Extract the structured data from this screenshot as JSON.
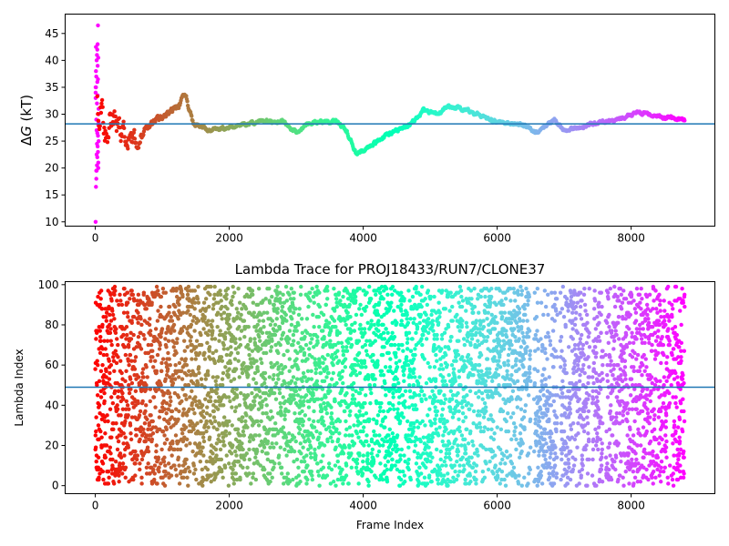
{
  "chart_data": [
    {
      "type": "scatter",
      "title": "",
      "xlabel": "",
      "ylabel": "ΔG (kT)",
      "ylabel_parts": {
        "delta": "Δ",
        "var": "G",
        "unit": " (kT)"
      },
      "xlim": [
        -450,
        9250
      ],
      "ylim": [
        9.2,
        48.6
      ],
      "xticks": [
        0,
        2000,
        4000,
        6000,
        8000
      ],
      "xtick_labels": [
        "0",
        "2000",
        "4000",
        "6000",
        "8000"
      ],
      "yticks": [
        10,
        15,
        20,
        25,
        30,
        35,
        40,
        45
      ],
      "ytick_labels": [
        "10",
        "15",
        "20",
        "25",
        "30",
        "35",
        "40",
        "45"
      ],
      "hline": 28.2,
      "hline_color": "#1f77b4",
      "colormap": "rainbow (red at frame 0 to violet at final frame)",
      "x_max": 8800,
      "anchors": [
        {
          "x": 10,
          "y": 40
        },
        {
          "x": 40,
          "y": 30
        },
        {
          "x": 80,
          "y": 33
        },
        {
          "x": 150,
          "y": 27
        },
        {
          "x": 250,
          "y": 30
        },
        {
          "x": 400,
          "y": 27
        },
        {
          "x": 600,
          "y": 25
        },
        {
          "x": 800,
          "y": 28
        },
        {
          "x": 1000,
          "y": 29.5
        },
        {
          "x": 1200,
          "y": 31
        },
        {
          "x": 1350,
          "y": 33.5
        },
        {
          "x": 1450,
          "y": 28.5
        },
        {
          "x": 1700,
          "y": 27
        },
        {
          "x": 2000,
          "y": 27.5
        },
        {
          "x": 2400,
          "y": 28.5
        },
        {
          "x": 2800,
          "y": 28.8
        },
        {
          "x": 3000,
          "y": 26.5
        },
        {
          "x": 3200,
          "y": 28.5
        },
        {
          "x": 3600,
          "y": 28.8
        },
        {
          "x": 3750,
          "y": 27
        },
        {
          "x": 3900,
          "y": 22.5
        },
        {
          "x": 4100,
          "y": 24
        },
        {
          "x": 4400,
          "y": 26.5
        },
        {
          "x": 4700,
          "y": 28
        },
        {
          "x": 4900,
          "y": 30.8
        },
        {
          "x": 5100,
          "y": 30
        },
        {
          "x": 5300,
          "y": 31.5
        },
        {
          "x": 5600,
          "y": 30.5
        },
        {
          "x": 5800,
          "y": 29.5
        },
        {
          "x": 6000,
          "y": 28.5
        },
        {
          "x": 6400,
          "y": 28
        },
        {
          "x": 6600,
          "y": 26.5
        },
        {
          "x": 6850,
          "y": 29
        },
        {
          "x": 7000,
          "y": 27
        },
        {
          "x": 7200,
          "y": 27.5
        },
        {
          "x": 7500,
          "y": 28.5
        },
        {
          "x": 7800,
          "y": 29
        },
        {
          "x": 8100,
          "y": 30.5
        },
        {
          "x": 8400,
          "y": 29.5
        },
        {
          "x": 8800,
          "y": 29
        }
      ],
      "early_scatter_y": [
        10,
        16.5,
        18,
        19.5,
        20.5,
        22,
        24,
        26,
        28,
        31,
        33,
        35,
        37,
        40,
        41,
        42,
        43,
        46.5,
        20,
        25,
        35,
        38,
        29,
        27,
        32,
        36,
        39,
        23,
        21,
        30,
        34,
        42.5,
        19.5,
        22.5,
        24.5,
        26.5,
        33.5,
        36.5,
        40.5,
        28.5
      ]
    },
    {
      "type": "scatter",
      "title": "Lambda Trace for PROJ18433/RUN7/CLONE37",
      "xlabel": "Frame Index",
      "ylabel": "Lambda Index",
      "xlim": [
        -450,
        9250
      ],
      "ylim": [
        -4,
        101.5
      ],
      "xticks": [
        0,
        2000,
        4000,
        6000,
        8000
      ],
      "xtick_labels": [
        "0",
        "2000",
        "4000",
        "6000",
        "8000"
      ],
      "yticks": [
        0,
        20,
        40,
        60,
        80,
        100
      ],
      "ytick_labels": [
        "0",
        "20",
        "40",
        "60",
        "80",
        "100"
      ],
      "hline": 49,
      "hline_color": "#1f77b4",
      "colormap": "rainbow (red at frame 0 to violet at final frame)",
      "x_max": 8800,
      "lambda_range": [
        0,
        99
      ],
      "gap_frames": [
        [
          6500,
          6550
        ],
        [
          6900,
          6940
        ],
        [
          7380,
          7420
        ],
        [
          7580,
          7620
        ],
        [
          8580,
          8600
        ]
      ]
    }
  ]
}
